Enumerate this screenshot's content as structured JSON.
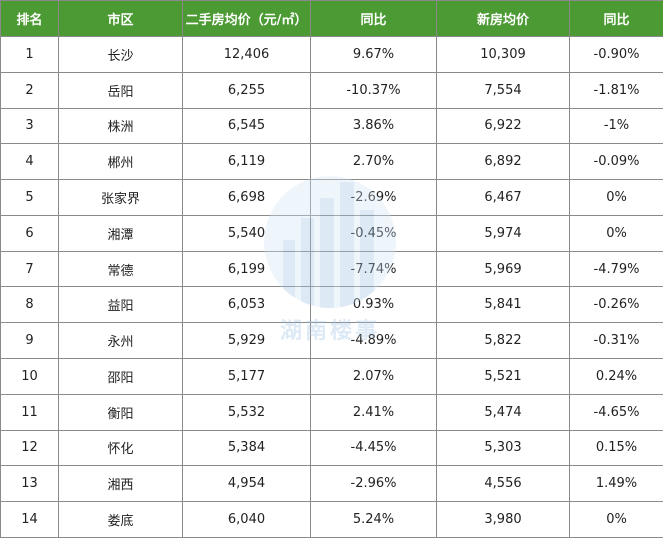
{
  "table": {
    "headers": [
      "排名",
      "市区",
      "二手房均价（元/㎡）",
      "同比",
      "新房均价",
      "同比"
    ],
    "rows": [
      [
        "1",
        "长沙",
        "12,406",
        "9.67%",
        "10,309",
        "-0.90%"
      ],
      [
        "2",
        "岳阳",
        "6,255",
        "-10.37%",
        "7,554",
        "-1.81%"
      ],
      [
        "3",
        "株洲",
        "6,545",
        "3.86%",
        "6,922",
        "-1%"
      ],
      [
        "4",
        "郴州",
        "6,119",
        "2.70%",
        "6,892",
        "-0.09%"
      ],
      [
        "5",
        "张家界",
        "6,698",
        "-2.69%",
        "6,467",
        "0%"
      ],
      [
        "6",
        "湘潭",
        "5,540",
        "-0.45%",
        "5,974",
        "0%"
      ],
      [
        "7",
        "常德",
        "6,199",
        "-7.74%",
        "5,969",
        "-4.79%"
      ],
      [
        "8",
        "益阳",
        "6,053",
        "0.93%",
        "5,841",
        "-0.26%"
      ],
      [
        "9",
        "永州",
        "5,929",
        "-4.89%",
        "5,822",
        "-0.31%"
      ],
      [
        "10",
        "邵阳",
        "5,177",
        "2.07%",
        "5,521",
        "0.24%"
      ],
      [
        "11",
        "衡阳",
        "5,532",
        "2.41%",
        "5,474",
        "-4.65%"
      ],
      [
        "12",
        "怀化",
        "5,384",
        "-4.45%",
        "5,303",
        "0.15%"
      ],
      [
        "13",
        "湘西",
        "4,954",
        "-2.96%",
        "4,556",
        "1.49%"
      ],
      [
        "14",
        "娄底",
        "6,040",
        "5.24%",
        "3,980",
        "0%"
      ]
    ]
  },
  "watermark": {
    "text": "湖南楼事",
    "color": "#9fc4e6"
  },
  "colors": {
    "header_bg": "#4b9a33",
    "header_text": "#ffffff",
    "border": "#8a8a8a"
  }
}
